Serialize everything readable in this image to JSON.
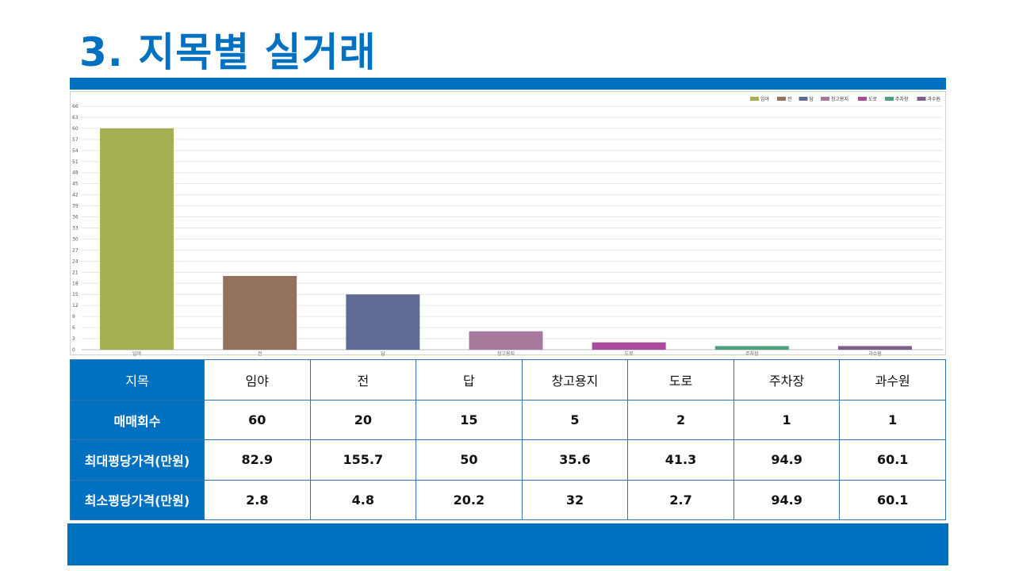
{
  "title": "3. 지목별 실거래",
  "chart_data": {
    "type": "bar",
    "categories": [
      "임야",
      "전",
      "답",
      "창고용지",
      "도로",
      "주차장",
      "과수원"
    ],
    "values": [
      60,
      20,
      15,
      5,
      2,
      1,
      1
    ],
    "colors": [
      "#a5ae53",
      "#93715d",
      "#5f6b95",
      "#a7799d",
      "#a94c9b",
      "#4f9e7d",
      "#7c5f88"
    ],
    "legend": [
      "임야",
      "전",
      "답",
      "창고용지",
      "도로",
      "주차장",
      "과수원"
    ],
    "legend_position": "top-right",
    "yticks": [
      0,
      3,
      6,
      9,
      12,
      15,
      18,
      21,
      24,
      27,
      30,
      33,
      36,
      39,
      42,
      45,
      48,
      51,
      54,
      57,
      60,
      63,
      66
    ],
    "ylim": [
      0,
      66
    ],
    "grid": true
  },
  "table": {
    "columns": [
      "임야",
      "전",
      "답",
      "창고용지",
      "도로",
      "주차장",
      "과수원"
    ],
    "rows": [
      {
        "label": "지목",
        "values": [
          "임야",
          "전",
          "답",
          "창고용지",
          "도로",
          "주차장",
          "과수원"
        ]
      },
      {
        "label": "매매회수",
        "values": [
          "60",
          "20",
          "15",
          "5",
          "2",
          "1",
          "1"
        ]
      },
      {
        "label": "최대평당가격(만원)",
        "values": [
          "82.9",
          "155.7",
          "50",
          "35.6",
          "41.3",
          "94.9",
          "60.1"
        ]
      },
      {
        "label": "최소평당가격(만원)",
        "values": [
          "2.8",
          "4.8",
          "20.2",
          "32",
          "2.7",
          "94.9",
          "60.1"
        ]
      }
    ]
  },
  "colors": {
    "accent": "#0070c0",
    "table_border": "#2e75b6"
  }
}
